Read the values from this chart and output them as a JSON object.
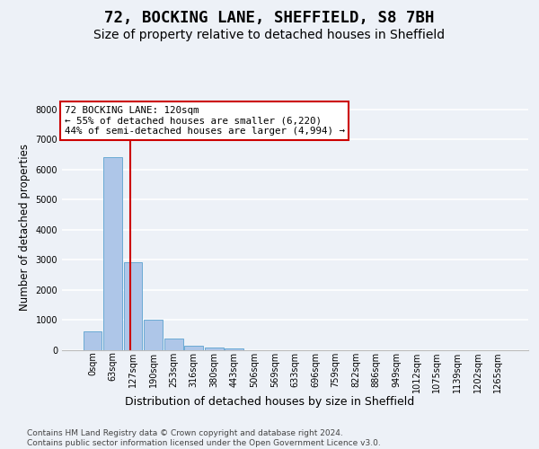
{
  "title1": "72, BOCKING LANE, SHEFFIELD, S8 7BH",
  "title2": "Size of property relative to detached houses in Sheffield",
  "xlabel": "Distribution of detached houses by size in Sheffield",
  "ylabel": "Number of detached properties",
  "bar_values": [
    620,
    6420,
    2920,
    1000,
    380,
    160,
    90,
    70,
    0,
    0,
    0,
    0,
    0,
    0,
    0,
    0,
    0,
    0,
    0,
    0,
    0
  ],
  "bar_labels": [
    "0sqm",
    "63sqm",
    "127sqm",
    "190sqm",
    "253sqm",
    "316sqm",
    "380sqm",
    "443sqm",
    "506sqm",
    "569sqm",
    "633sqm",
    "696sqm",
    "759sqm",
    "822sqm",
    "886sqm",
    "949sqm",
    "1012sqm",
    "1075sqm",
    "1139sqm",
    "1202sqm",
    "1265sqm"
  ],
  "bar_color": "#aec6e8",
  "bar_edge_color": "#6aaad4",
  "vline_x": 1.85,
  "vline_color": "#cc0000",
  "annotation_line1": "72 BOCKING LANE: 120sqm",
  "annotation_line2": "← 55% of detached houses are smaller (6,220)",
  "annotation_line3": "44% of semi-detached houses are larger (4,994) →",
  "annotation_box_color": "white",
  "annotation_box_edge_color": "#cc0000",
  "ylim": [
    0,
    8200
  ],
  "yticks": [
    0,
    1000,
    2000,
    3000,
    4000,
    5000,
    6000,
    7000,
    8000
  ],
  "footer": "Contains HM Land Registry data © Crown copyright and database right 2024.\nContains public sector information licensed under the Open Government Licence v3.0.",
  "background_color": "#edf1f7",
  "grid_color": "white",
  "title1_fontsize": 12.5,
  "title2_fontsize": 10,
  "xlabel_fontsize": 9,
  "ylabel_fontsize": 8.5,
  "tick_fontsize": 7,
  "annot_fontsize": 7.8,
  "footer_fontsize": 6.5
}
